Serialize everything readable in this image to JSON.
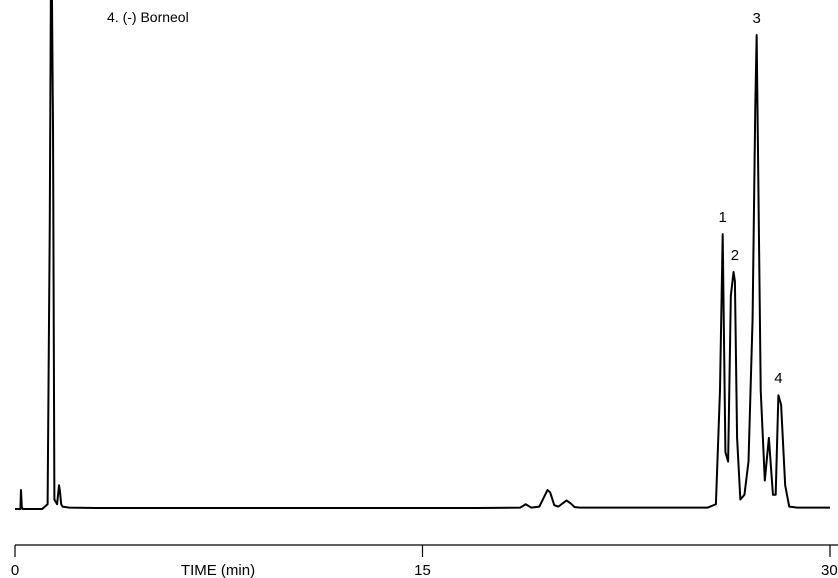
{
  "chart_data": {
    "type": "line",
    "title": "",
    "legend_entries": [
      {
        "number": "4.",
        "name": "(-) Borneol"
      }
    ],
    "xlabel": "TIME (min)",
    "ylabel": "",
    "xlim": [
      0,
      30
    ],
    "ylim": [
      0,
      1.0
    ],
    "x_ticks": [
      0,
      15,
      30
    ],
    "x_tick_labels": [
      "0",
      "15",
      "30"
    ],
    "grid": false,
    "peak_labels": [
      {
        "label": "1",
        "x": 26.05
      },
      {
        "label": "2",
        "x": 26.5
      },
      {
        "label": "3",
        "x": 27.3
      },
      {
        "label": "4",
        "x": 28.1
      }
    ],
    "series": [
      {
        "x": [
          0.0,
          0.2,
          0.22,
          0.25,
          0.28,
          0.3,
          0.5,
          1.0,
          1.2,
          1.28,
          1.32,
          1.36,
          1.4,
          1.45,
          1.55,
          1.62,
          1.65,
          1.7,
          1.75,
          2.0,
          3.0,
          5.0,
          8.0,
          11.0,
          14.0,
          17.0,
          18.6,
          18.8,
          19.0,
          19.3,
          19.6,
          19.7,
          19.85,
          20.0,
          20.3,
          20.45,
          20.6,
          20.8,
          22.0,
          24.0,
          25.5,
          25.8,
          25.95,
          26.05,
          26.15,
          26.25,
          26.35,
          26.45,
          26.5,
          26.58,
          26.7,
          26.85,
          27.0,
          27.15,
          27.25,
          27.3,
          27.35,
          27.45,
          27.6,
          27.75,
          27.9,
          28.0,
          28.1,
          28.2,
          28.35,
          28.5,
          28.8,
          29.2,
          30.0
        ],
        "y": [
          0.0,
          0.0,
          0.04,
          0.005,
          0.0,
          0.0,
          0.0,
          0.0,
          0.01,
          0.6,
          1.5,
          1.8,
          0.8,
          0.02,
          0.01,
          0.05,
          0.04,
          0.01,
          0.005,
          0.003,
          0.002,
          0.002,
          0.002,
          0.002,
          0.002,
          0.002,
          0.003,
          0.01,
          0.003,
          0.005,
          0.04,
          0.035,
          0.008,
          0.005,
          0.018,
          0.012,
          0.004,
          0.003,
          0.003,
          0.003,
          0.003,
          0.01,
          0.25,
          0.58,
          0.12,
          0.1,
          0.45,
          0.5,
          0.48,
          0.15,
          0.02,
          0.03,
          0.1,
          0.4,
          0.85,
          1.0,
          0.75,
          0.25,
          0.06,
          0.15,
          0.03,
          0.03,
          0.24,
          0.22,
          0.05,
          0.005,
          0.003,
          0.003,
          0.003
        ]
      }
    ]
  }
}
